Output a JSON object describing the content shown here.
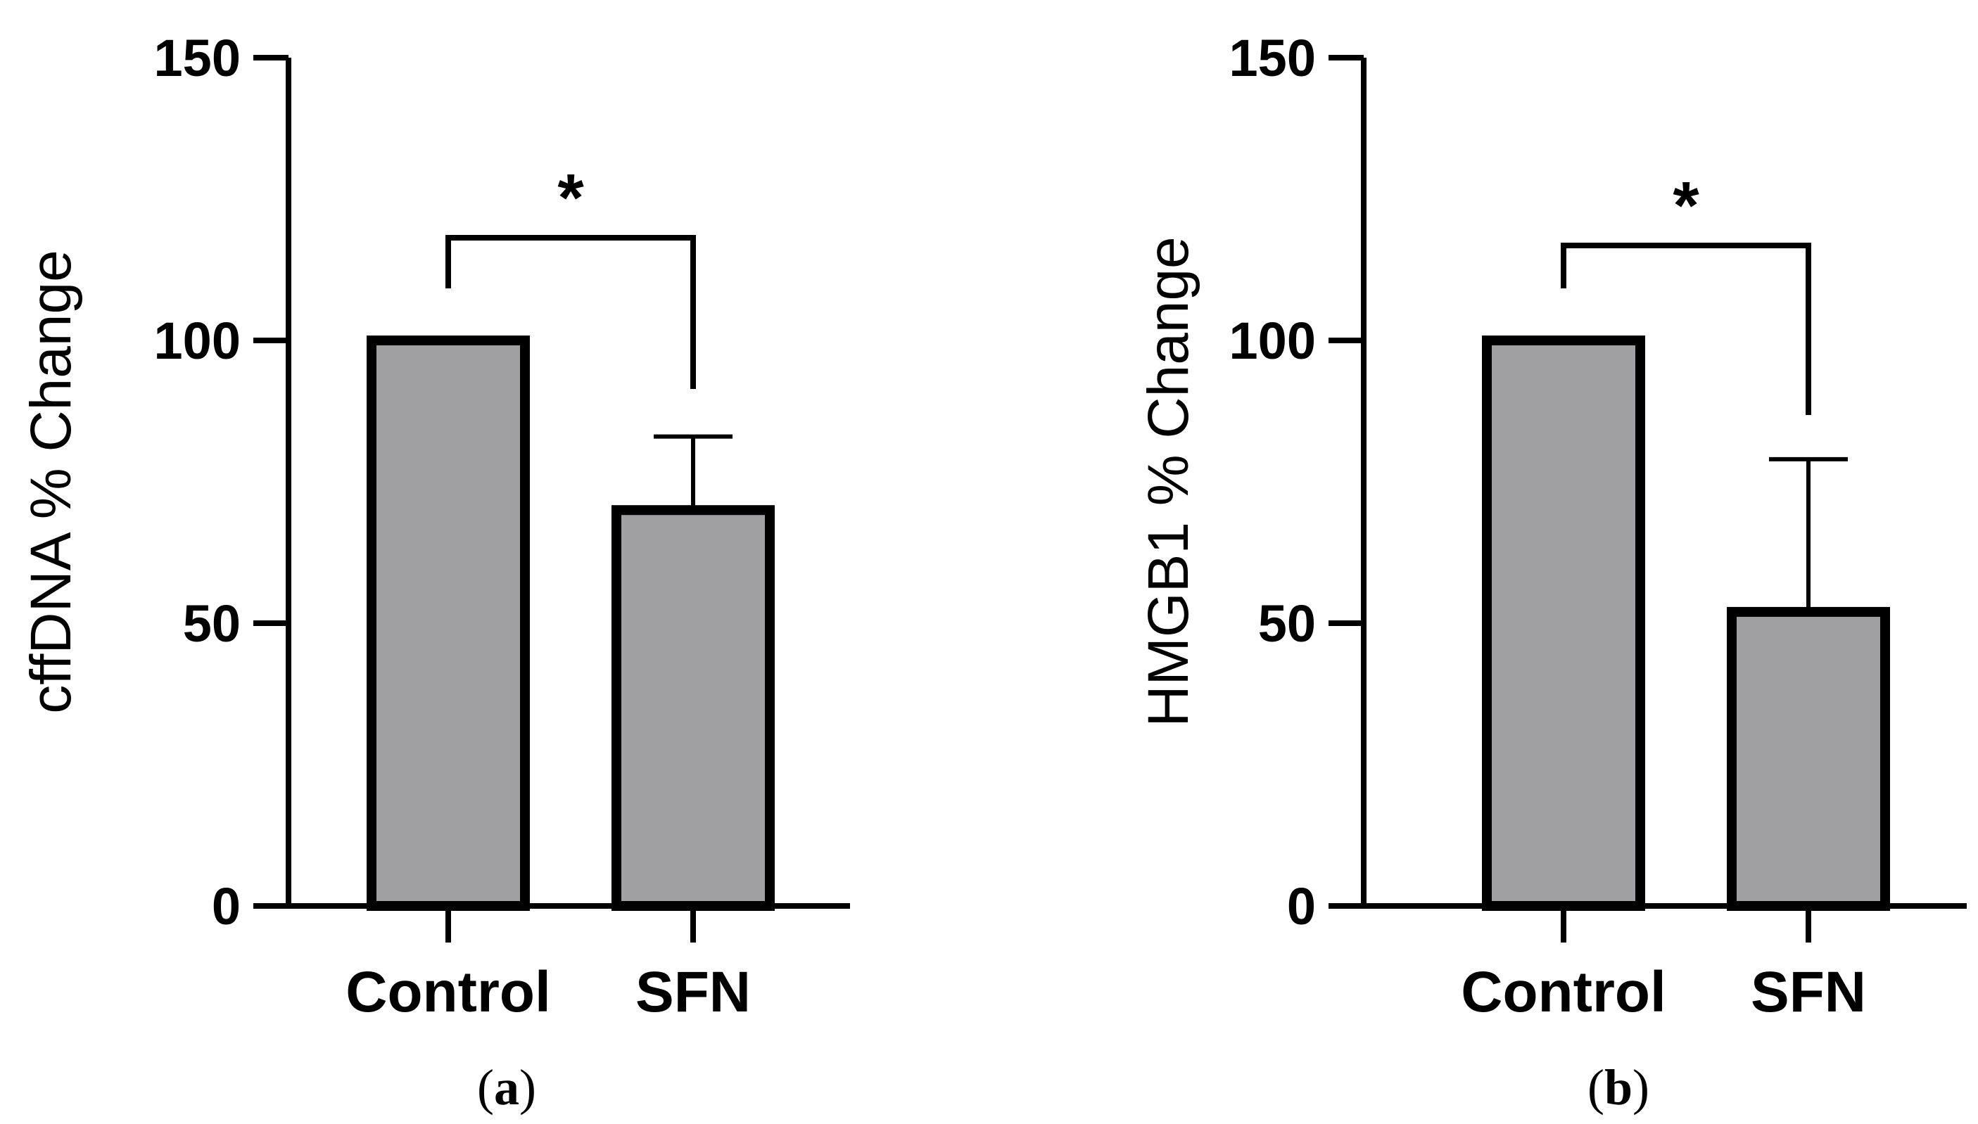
{
  "chart_data": [
    {
      "type": "bar",
      "panel_label": "(a)",
      "panel_letter": "a",
      "categories": [
        "Control",
        "SFN"
      ],
      "values": [
        100,
        70
      ],
      "error_upper": [
        null,
        83
      ],
      "ylabel": "cffDNA % Change",
      "ylim": [
        0,
        150
      ],
      "yticks": [
        0,
        50,
        100,
        150
      ],
      "significance": {
        "label": "*",
        "between": [
          0,
          1
        ]
      },
      "grid": false,
      "colors": {
        "bar_fill": "#a0a0a2",
        "bar_stroke": "#000000"
      }
    },
    {
      "type": "bar",
      "panel_label": "(b)",
      "panel_letter": "b",
      "categories": [
        "Control",
        "SFN"
      ],
      "values": [
        100,
        52
      ],
      "error_upper": [
        null,
        79
      ],
      "ylabel": "HMGB1 % Change",
      "ylim": [
        0,
        150
      ],
      "yticks": [
        0,
        50,
        100,
        150
      ],
      "significance": {
        "label": "*",
        "between": [
          0,
          1
        ]
      },
      "grid": false,
      "colors": {
        "bar_fill": "#a0a0a2",
        "bar_stroke": "#000000"
      }
    }
  ]
}
